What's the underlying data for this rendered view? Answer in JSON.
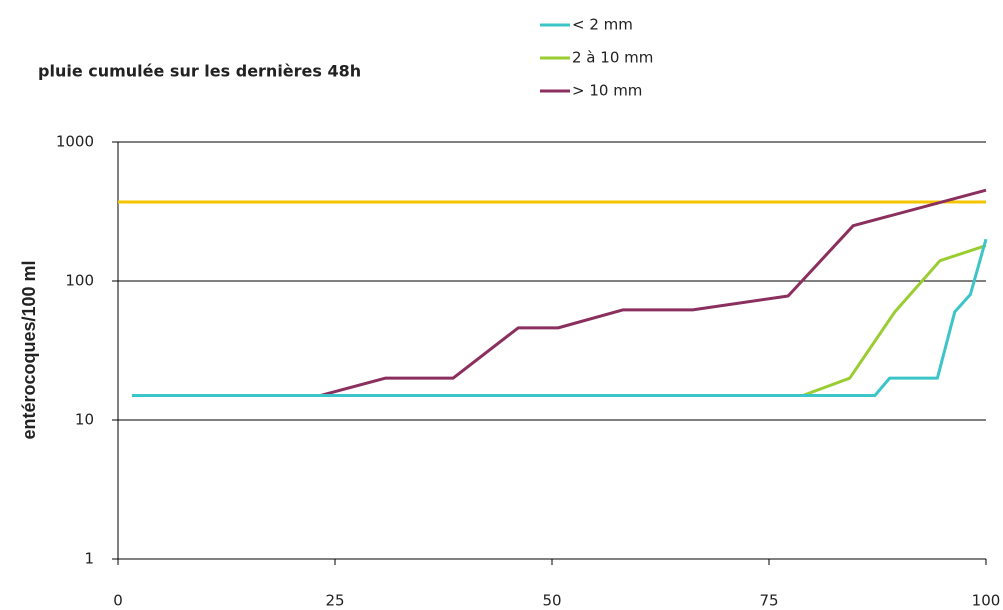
{
  "chart_data": {
    "type": "line",
    "title": "pluie cumulée sur les dernières 48h",
    "y_label": "entérocoques/100 ml",
    "ylog": true,
    "grid": true,
    "xlim": [
      0,
      100
    ],
    "xticks": [
      0,
      25,
      50,
      75,
      100
    ],
    "ylim": [
      1,
      1000
    ],
    "yticks": [
      1,
      10,
      100,
      1000
    ],
    "series": [
      {
        "name": "< 2 mm",
        "color": "#3cc5c8",
        "x": [
          1.6,
          87.2,
          88.9,
          94.4,
          96.4,
          98.2,
          100
        ],
        "values": [
          15,
          15,
          20,
          20,
          60,
          80,
          200
        ]
      },
      {
        "name": "2 à 10 mm",
        "color": "#9acd32",
        "x": [
          4.8,
          78.9,
          84.3,
          89.5,
          94.7,
          100
        ],
        "values": [
          15,
          15,
          20,
          60,
          140,
          180
        ]
      },
      {
        "name": "> 10 mm",
        "color": "#8b2f5e",
        "x": [
          7.5,
          23.3,
          30.8,
          38.6,
          46.1,
          50.7,
          58.2,
          66.2,
          77.2,
          84.7,
          100
        ],
        "values": [
          15,
          15,
          20,
          20,
          46,
          46,
          62,
          62,
          78,
          250,
          450
        ]
      },
      {
        "color": "#f5c400",
        "x": [
          0,
          100
        ],
        "values": [
          370,
          370
        ]
      }
    ]
  }
}
